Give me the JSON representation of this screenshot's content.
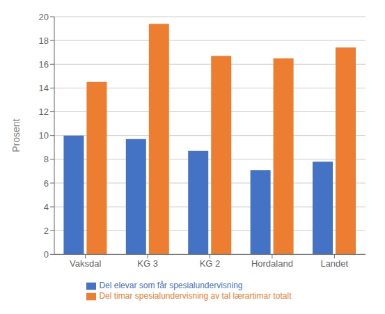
{
  "chart_data": {
    "type": "bar",
    "ylabel": "Prosent",
    "categories": [
      "Vaksdal",
      "KG 3",
      "KG 2",
      "Hordaland",
      "Landet"
    ],
    "series": [
      {
        "name": "Del elevar som får spesialundervisning",
        "color": "#4472C4",
        "values": [
          10.0,
          9.7,
          8.7,
          7.1,
          7.8
        ]
      },
      {
        "name": "Del timar spesialundervisning av tal lærartimar totalt",
        "color": "#ED7D31",
        "values": [
          14.5,
          19.4,
          16.7,
          16.5,
          17.4
        ]
      }
    ],
    "ylim": [
      0,
      20
    ],
    "yticks": [
      0,
      2,
      4,
      6,
      8,
      10,
      12,
      14,
      16,
      18,
      20
    ],
    "grid": true,
    "legend": "bottom"
  }
}
